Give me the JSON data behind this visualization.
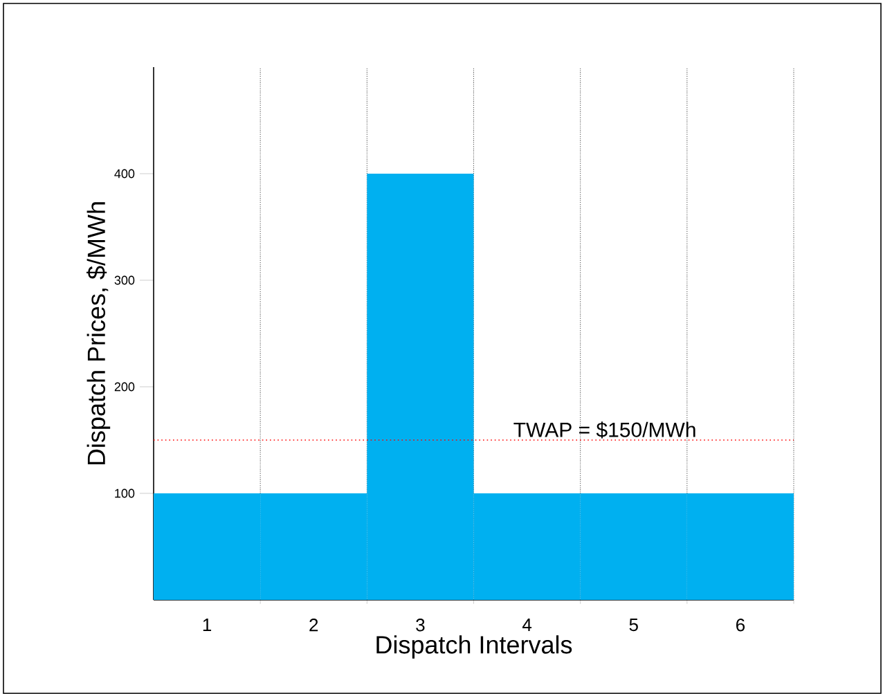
{
  "chart_data": {
    "type": "bar",
    "xlabel": "Dispatch Intervals",
    "ylabel": "Dispatch Prices, $/MWh",
    "categories": [
      "1",
      "2",
      "3",
      "4",
      "5",
      "6"
    ],
    "values": [
      100,
      100,
      400,
      100,
      100,
      100
    ],
    "color": "#00b0f0",
    "ylim": [
      0,
      500
    ],
    "yticks": [
      100,
      200,
      300,
      400
    ],
    "grid": "x",
    "ref_lines": [
      {
        "axis": "y",
        "value": 150,
        "label": "TWAP = $150/MWh",
        "color": "#ff0000",
        "line_style": "dotted"
      }
    ]
  }
}
